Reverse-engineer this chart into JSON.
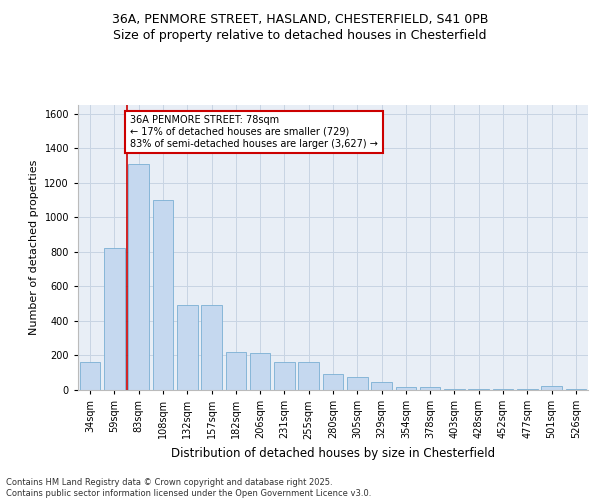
{
  "title1": "36A, PENMORE STREET, HASLAND, CHESTERFIELD, S41 0PB",
  "title2": "Size of property relative to detached houses in Chesterfield",
  "xlabel": "Distribution of detached houses by size in Chesterfield",
  "ylabel": "Number of detached properties",
  "categories": [
    "34sqm",
    "59sqm",
    "83sqm",
    "108sqm",
    "132sqm",
    "157sqm",
    "182sqm",
    "206sqm",
    "231sqm",
    "255sqm",
    "280sqm",
    "305sqm",
    "329sqm",
    "354sqm",
    "378sqm",
    "403sqm",
    "428sqm",
    "452sqm",
    "477sqm",
    "501sqm",
    "526sqm"
  ],
  "values": [
    160,
    820,
    1310,
    1100,
    490,
    490,
    220,
    215,
    160,
    160,
    90,
    75,
    45,
    20,
    20,
    5,
    5,
    5,
    5,
    25,
    5
  ],
  "bar_color": "#c5d8ef",
  "bar_edge_color": "#7bafd4",
  "grid_color": "#c8d4e3",
  "bg_color": "#e8eef6",
  "vline_color": "#cc0000",
  "annotation_text": "36A PENMORE STREET: 78sqm\n← 17% of detached houses are smaller (729)\n83% of semi-detached houses are larger (3,627) →",
  "annotation_box_color": "#cc0000",
  "ylim": [
    0,
    1650
  ],
  "yticks": [
    0,
    200,
    400,
    600,
    800,
    1000,
    1200,
    1400,
    1600
  ],
  "footer": "Contains HM Land Registry data © Crown copyright and database right 2025.\nContains public sector information licensed under the Open Government Licence v3.0.",
  "title_fontsize": 9,
  "subtitle_fontsize": 9,
  "ylabel_fontsize": 8,
  "xlabel_fontsize": 8.5,
  "tick_fontsize": 7,
  "annot_fontsize": 7,
  "footer_fontsize": 6
}
